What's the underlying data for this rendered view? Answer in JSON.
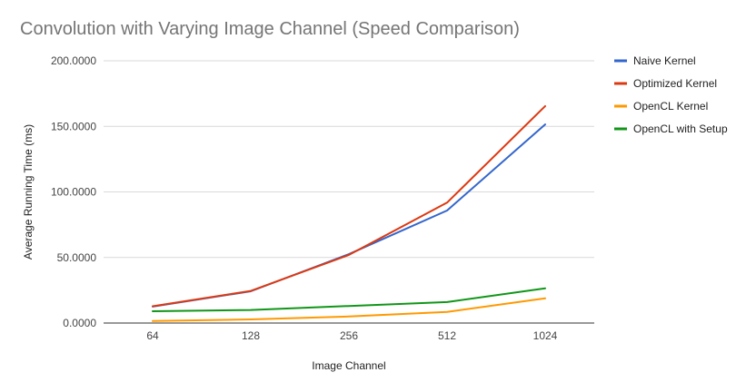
{
  "chart_data": {
    "type": "line",
    "title": "Convolution with Varying Image Channel (Speed Comparison)",
    "xlabel": "Image Channel",
    "ylabel": "Average Running Time (ms)",
    "categories": [
      "64",
      "128",
      "256",
      "512",
      "1024"
    ],
    "ylim": [
      0,
      200
    ],
    "yticks": [
      "0.0000",
      "50.0000",
      "100.0000",
      "150.0000",
      "200.0000"
    ],
    "grid": true,
    "legend_position": "right",
    "series": [
      {
        "name": "Naive Kernel",
        "color": "#3366cc",
        "values": [
          12.5,
          24.2,
          52.5,
          85.8,
          151.5
        ]
      },
      {
        "name": "Optimized Kernel",
        "color": "#dc3912",
        "values": [
          12.8,
          24.5,
          52.0,
          91.8,
          165.5
        ]
      },
      {
        "name": "OpenCL Kernel",
        "color": "#ff9900",
        "values": [
          1.5,
          2.8,
          5.0,
          8.5,
          18.8
        ]
      },
      {
        "name": "OpenCL with Setup",
        "color": "#109618",
        "values": [
          9.0,
          10.0,
          13.0,
          16.0,
          26.5
        ]
      }
    ]
  }
}
